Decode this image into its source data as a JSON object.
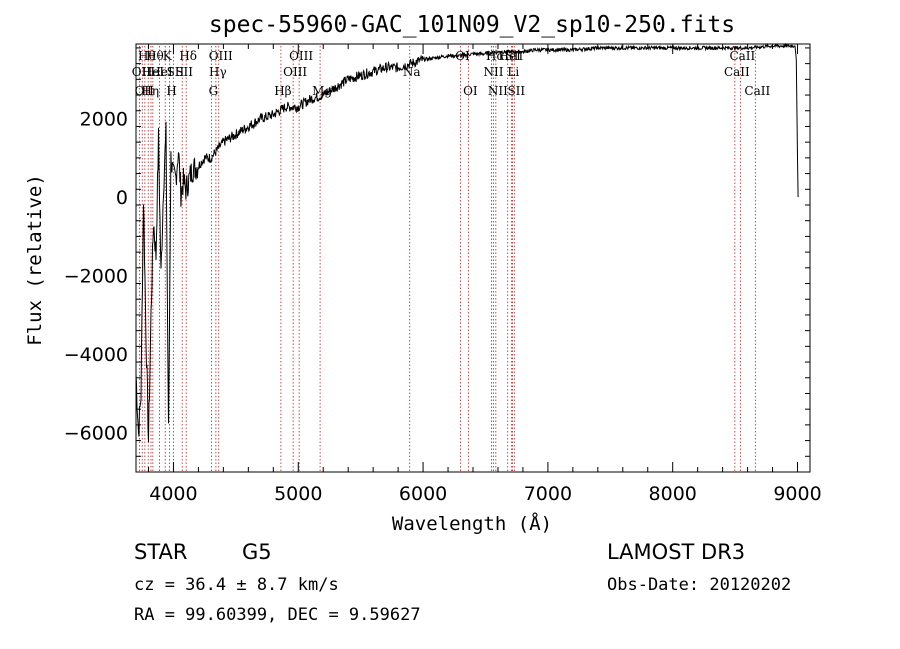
{
  "chart_data": {
    "type": "line",
    "title": "spec-55960-GAC_101N09_V2_sp10-250.fits",
    "xlabel": "Wavelength (Å)",
    "ylabel": "Flux (relative)",
    "xlim": [
      3700,
      9100
    ],
    "ylim": [
      -7000,
      3900
    ],
    "x_ticks": [
      4000,
      5000,
      6000,
      7000,
      8000,
      9000
    ],
    "y_ticks": [
      -6000,
      -4000,
      -2000,
      0,
      2000
    ],
    "series": [
      {
        "x": [
          3700,
          3720,
          3740,
          3760,
          3780,
          3800,
          3820,
          3840,
          3860,
          3880,
          3900,
          3920,
          3940,
          3960,
          3980,
          4000,
          4020,
          4040,
          4060,
          4080,
          4100,
          4150,
          4200,
          4250,
          4300,
          4350,
          4400,
          4500,
          4600,
          4700,
          4800,
          4900,
          5000,
          5100,
          5200,
          5300,
          5400,
          5500,
          5600,
          5700,
          5800,
          5900,
          6000,
          6100,
          6200,
          6300,
          6400,
          6500,
          6600,
          6700,
          6800,
          6900,
          7000,
          7200,
          7400,
          7600,
          7800,
          8000,
          8200,
          8400,
          8600,
          8800,
          8900,
          8950,
          8980,
          8990,
          9000,
          9005
        ],
        "y": [
          -4500,
          -6000,
          -5000,
          0,
          -3500,
          -6200,
          -3000,
          -600,
          -1500,
          1500,
          -2000,
          300,
          1600,
          -6000,
          1000,
          500,
          500,
          1200,
          100,
          400,
          200,
          700,
          800,
          1000,
          1000,
          1200,
          1400,
          1600,
          1800,
          2000,
          2100,
          2300,
          2300,
          2500,
          2600,
          2800,
          3000,
          3100,
          3200,
          3300,
          3300,
          3400,
          3500,
          3550,
          3600,
          3600,
          3650,
          3650,
          3700,
          3700,
          3700,
          3750,
          3750,
          3750,
          3800,
          3800,
          3800,
          3800,
          3800,
          3800,
          3800,
          3850,
          3850,
          3850,
          3850,
          3500,
          1000,
          0
        ]
      }
    ],
    "line_labels": [
      {
        "wavelength": 3727,
        "label": "OII",
        "row": 2
      },
      {
        "wavelength": 3750,
        "label": "OII",
        "row": 3
      },
      {
        "wavelength": 3771,
        "label": "Hθ",
        "row": 1
      },
      {
        "wavelength": 3798,
        "label": "Hη",
        "row": 3
      },
      {
        "wavelength": 3820,
        "label": "HeI",
        "row": 2
      },
      {
        "wavelength": 3835,
        "label": "Hθ",
        "row": 1
      },
      {
        "wavelength": 3889,
        "label": "HeI",
        "row": 2
      },
      {
        "wavelength": 3934,
        "label": "K",
        "row": 1
      },
      {
        "wavelength": 3969,
        "label": "H",
        "row": 3
      },
      {
        "wavelength": 4000,
        "label": "SII",
        "row": 2
      },
      {
        "wavelength": 4102,
        "label": "Hδ",
        "row": 1
      },
      {
        "wavelength": 4070,
        "label": "SII",
        "row": 2
      },
      {
        "wavelength": 4304,
        "label": "G",
        "row": 3
      },
      {
        "wavelength": 4340,
        "label": "Hγ",
        "row": 2
      },
      {
        "wavelength": 4363,
        "label": "OIII",
        "row": 1
      },
      {
        "wavelength": 4861,
        "label": "Hβ",
        "row": 3
      },
      {
        "wavelength": 4959,
        "label": "OIII",
        "row": 2
      },
      {
        "wavelength": 5007,
        "label": "OIII",
        "row": 1
      },
      {
        "wavelength": 5175,
        "label": "Mg",
        "row": 3
      },
      {
        "wavelength": 5893,
        "label": "Na",
        "row": 2
      },
      {
        "wavelength": 6300,
        "label": "OI",
        "row": 1
      },
      {
        "wavelength": 6363,
        "label": "OI",
        "row": 3
      },
      {
        "wavelength": 6548,
        "label": "NII",
        "row": 2
      },
      {
        "wavelength": 6563,
        "label": "Hα",
        "row": 1
      },
      {
        "wavelength": 6583,
        "label": "NII",
        "row": 3
      },
      {
        "wavelength": 6678,
        "label": "HeI",
        "row": 1
      },
      {
        "wavelength": 6707,
        "label": "Li",
        "row": 2
      },
      {
        "wavelength": 6716,
        "label": "SII",
        "row": 1
      },
      {
        "wavelength": 6731,
        "label": "SII",
        "row": 3
      },
      {
        "wavelength": 8498,
        "label": "CaII",
        "row": 2
      },
      {
        "wavelength": 8542,
        "label": "CaII",
        "row": 1
      },
      {
        "wavelength": 8662,
        "label": "CaII",
        "row": 3
      }
    ]
  },
  "info": {
    "object_class": "STAR",
    "subclass": "G5",
    "cz": "cz = 36.4 ± 8.7 km/s",
    "radec": "RA =  99.60399, DEC =   9.59627",
    "survey": "LAMOST DR3",
    "obs_date": "Obs-Date: 20120202"
  },
  "colors": {
    "line_marker": "#b22222",
    "spectrum": "#000000"
  }
}
